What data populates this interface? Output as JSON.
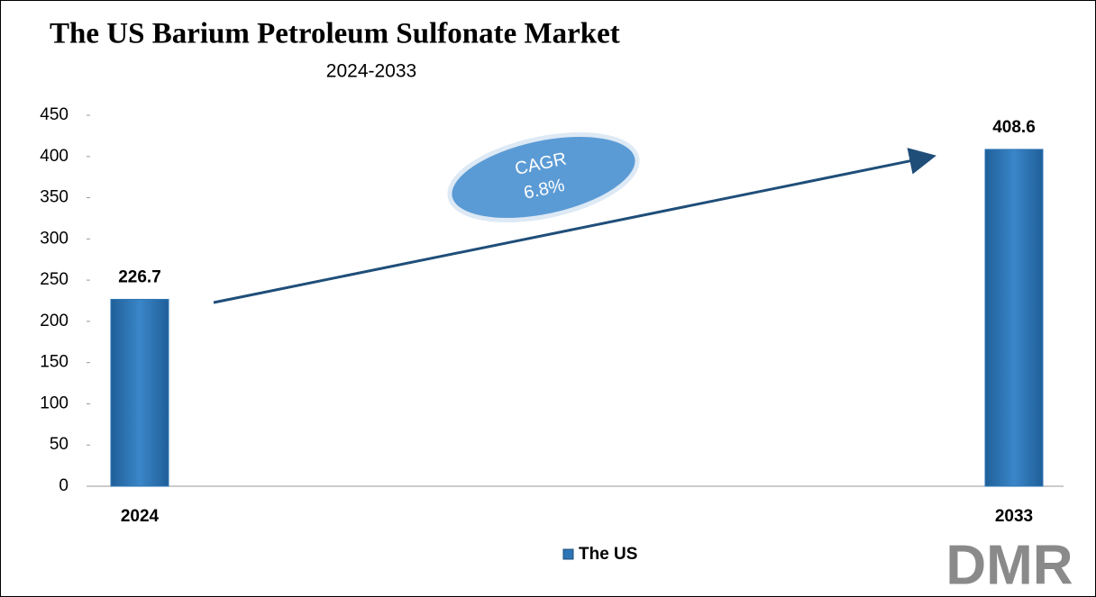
{
  "chart_data": {
    "type": "bar",
    "title": "The US Barium Petroleum Sulfonate Market",
    "subtitle": "2024-2033",
    "categories": [
      "2024",
      "2033"
    ],
    "series": [
      {
        "name": "The US",
        "color": "#2e75b6",
        "values": [
          226.7,
          408.6
        ]
      }
    ],
    "ylim": [
      0,
      450
    ],
    "yticks": [
      0,
      50,
      100,
      150,
      200,
      250,
      300,
      350,
      400,
      450
    ],
    "annotations": [
      "CAGR",
      "6.8%"
    ],
    "logo": "DMR",
    "grid": false
  }
}
